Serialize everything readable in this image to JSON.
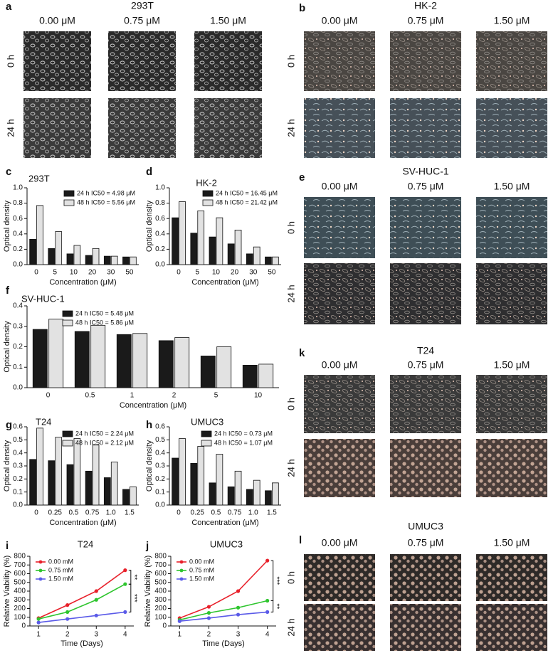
{
  "image_panels": [
    {
      "label": "a",
      "title": "293T",
      "columns": [
        "0.00 μM",
        "0.75 μM",
        "1.50 μM"
      ],
      "rows": [
        "0 h",
        "24 h"
      ]
    },
    {
      "label": "b",
      "title": "HK-2",
      "columns": [
        "0.00 μM",
        "0.75 μM",
        "1.50 μM"
      ],
      "rows": [
        "0 h",
        "24 h"
      ]
    },
    {
      "label": "e",
      "title": "SV-HUC-1",
      "columns": [
        "0.00 μM",
        "0.75 μM",
        "1.50 μM"
      ],
      "rows": [
        "0 h",
        "24 h"
      ]
    },
    {
      "label": "k",
      "title": "T24",
      "columns": [
        "0.00 μM",
        "0.75 μM",
        "1.50 μM"
      ],
      "rows": [
        "0 h",
        "24 h"
      ]
    },
    {
      "label": "l",
      "title": "UMUC3",
      "columns": [
        "0.00 μM",
        "0.75 μM",
        "1.50 μM"
      ],
      "rows": [
        "0 h",
        "24 h"
      ]
    }
  ],
  "chart_data": [
    {
      "type": "bar",
      "label": "c",
      "title": "293T",
      "categories": [
        "0",
        "5",
        "10",
        "20",
        "30",
        "50"
      ],
      "x_label": "Concentration (μM)",
      "y_label": "Optical density",
      "series": [
        {
          "name": "24 h IC50 = 4.98 μM",
          "color": "#1a1a1a",
          "values": [
            0.33,
            0.21,
            0.14,
            0.12,
            0.11,
            0.1
          ]
        },
        {
          "name": "48 h IC50 = 5.56 μM",
          "color": "#e2e2e2",
          "values": [
            0.77,
            0.43,
            0.25,
            0.21,
            0.11,
            0.1
          ]
        }
      ],
      "ylim": [
        0,
        1.0
      ],
      "yticks": [
        {
          "value": 0,
          "label": "0.0"
        },
        0.2,
        0.4,
        0.6,
        0.8,
        {
          "value": 1.0,
          "label": "1.0"
        }
      ]
    },
    {
      "type": "bar",
      "label": "d",
      "title": "HK-2",
      "categories": [
        "0",
        "5",
        "10",
        "20",
        "30",
        "50"
      ],
      "x_label": "Concentration (μM)",
      "y_label": "Optical density",
      "series": [
        {
          "name": "24 h IC50 = 16.45 μM",
          "color": "#1a1a1a",
          "values": [
            0.61,
            0.41,
            0.36,
            0.27,
            0.14,
            0.1
          ]
        },
        {
          "name": "48 h IC50 = 21.42 μM",
          "color": "#e2e2e2",
          "values": [
            0.82,
            0.7,
            0.61,
            0.45,
            0.23,
            0.1
          ]
        }
      ],
      "ylim": [
        0,
        1.0
      ],
      "yticks": [
        {
          "value": 0,
          "label": "0.0"
        },
        0.2,
        0.4,
        0.6,
        0.8,
        {
          "value": 1.0,
          "label": "1.0"
        }
      ]
    },
    {
      "type": "bar",
      "label": "f",
      "title": "SV-HUC-1",
      "categories": [
        "0",
        "0.5",
        "1",
        "2",
        "5",
        "10"
      ],
      "x_label": "Concentration (μM)",
      "y_label": "Optical density",
      "series": [
        {
          "name": "24 h IC50 = 5.48 μM",
          "color": "#1a1a1a",
          "values": [
            0.285,
            0.275,
            0.26,
            0.23,
            0.155,
            0.11
          ]
        },
        {
          "name": "48 h IC50 = 5.86 μM",
          "color": "#e2e2e2",
          "values": [
            0.335,
            0.305,
            0.265,
            0.245,
            0.2,
            0.115
          ]
        }
      ],
      "ylim": [
        0,
        0.4
      ],
      "yticks": [
        {
          "value": 0,
          "label": "0.0"
        },
        0.1,
        0.2,
        0.3,
        0.4
      ]
    },
    {
      "type": "bar",
      "label": "g",
      "title": "T24",
      "categories": [
        "0",
        "0.25",
        "0.5",
        "0.75",
        "1.0",
        "1.5"
      ],
      "x_label": "Concentration (μM)",
      "y_label": "Optical density",
      "series": [
        {
          "name": "24 h IC50 = 2.24 μM",
          "color": "#1a1a1a",
          "values": [
            0.35,
            0.34,
            0.31,
            0.26,
            0.21,
            0.12
          ]
        },
        {
          "name": "48 h IC50 = 2.12 μM",
          "color": "#e2e2e2",
          "values": [
            0.59,
            0.52,
            0.51,
            0.46,
            0.33,
            0.14
          ]
        }
      ],
      "ylim": [
        0,
        0.6
      ],
      "yticks": [
        {
          "value": 0,
          "label": "0.0"
        },
        0.1,
        0.2,
        0.3,
        0.4,
        0.5,
        0.6
      ]
    },
    {
      "type": "bar",
      "label": "h",
      "title": "UMUC3",
      "categories": [
        "0",
        "0.25",
        "0.5",
        "0.75",
        "1.0",
        "1.5"
      ],
      "x_label": "Concentration (μM)",
      "y_label": "Optical density",
      "series": [
        {
          "name": "24 h IC50 = 0.73 μM",
          "color": "#1a1a1a",
          "values": [
            0.36,
            0.32,
            0.17,
            0.14,
            0.12,
            0.11
          ]
        },
        {
          "name": "48 h IC50 = 1.07 μM",
          "color": "#e2e2e2",
          "values": [
            0.51,
            0.45,
            0.39,
            0.26,
            0.19,
            0.17
          ]
        }
      ],
      "ylim": [
        0,
        0.6
      ],
      "yticks": [
        {
          "value": 0,
          "label": "0.0"
        },
        0.1,
        0.2,
        0.3,
        0.4,
        0.5,
        0.6
      ]
    },
    {
      "type": "line",
      "label": "i",
      "title": "T24",
      "x": [
        1,
        2,
        3,
        4
      ],
      "xlim": [
        0.7,
        4.3
      ],
      "xticks": [
        1,
        2,
        3,
        4
      ],
      "x_label": "Time (Days)",
      "y_label": "Relative Viability (%)",
      "series": [
        {
          "name": "0.00 mM",
          "color": "#e8202a",
          "values": [
            90,
            240,
            400,
            640
          ]
        },
        {
          "name": "0.75 mM",
          "color": "#2ec52e",
          "values": [
            80,
            160,
            300,
            480
          ]
        },
        {
          "name": "1.50 mM",
          "color": "#5a5ae8",
          "values": [
            40,
            80,
            120,
            160
          ]
        }
      ],
      "ylim": [
        0,
        800
      ],
      "yticks": [
        0,
        100,
        200,
        300,
        400,
        500,
        600,
        700,
        800
      ],
      "annotations": [
        "**",
        "***"
      ]
    },
    {
      "type": "line",
      "label": "j",
      "title": "UMUC3",
      "x": [
        1,
        2,
        3,
        4
      ],
      "xlim": [
        0.7,
        4.3
      ],
      "xticks": [
        1,
        2,
        3,
        4
      ],
      "x_label": "Time (Days)",
      "y_label": "Relative Viability (%)",
      "series": [
        {
          "name": "0.00 mM",
          "color": "#e8202a",
          "values": [
            90,
            220,
            400,
            750
          ]
        },
        {
          "name": "0.75 mM",
          "color": "#2ec52e",
          "values": [
            70,
            150,
            210,
            290
          ]
        },
        {
          "name": "1.50 mM",
          "color": "#5a5ae8",
          "values": [
            55,
            90,
            130,
            160
          ]
        }
      ],
      "ylim": [
        0,
        800
      ],
      "yticks": [
        0,
        100,
        200,
        300,
        400,
        500,
        600,
        700,
        800
      ],
      "annotations": [
        "***",
        "**"
      ]
    }
  ]
}
